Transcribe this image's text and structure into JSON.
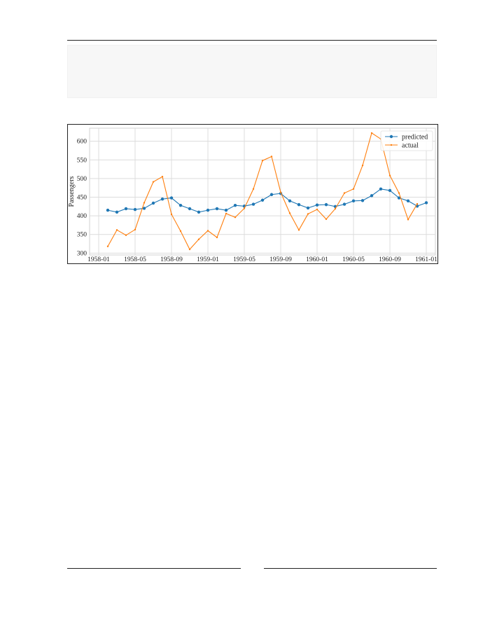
{
  "page": {
    "footer_number": ""
  },
  "chart_data": {
    "type": "line",
    "title": "",
    "xlabel": "",
    "ylabel": "Passengers",
    "ylim": [
      295,
      635
    ],
    "yticks": [
      300,
      350,
      400,
      450,
      500,
      550,
      600
    ],
    "xticks": [
      "1958-01",
      "1958-05",
      "1958-09",
      "1959-01",
      "1959-05",
      "1959-09",
      "1960-01",
      "1960-05",
      "1960-09",
      "1961-01"
    ],
    "grid": true,
    "legend_position": "top-right",
    "x": [
      "1958-02",
      "1958-03",
      "1958-04",
      "1958-05",
      "1958-06",
      "1958-07",
      "1958-08",
      "1958-09",
      "1958-10",
      "1958-11",
      "1958-12",
      "1959-01",
      "1959-02",
      "1959-03",
      "1959-04",
      "1959-05",
      "1959-06",
      "1959-07",
      "1959-08",
      "1959-09",
      "1959-10",
      "1959-11",
      "1959-12",
      "1960-01",
      "1960-02",
      "1960-03",
      "1960-04",
      "1960-05",
      "1960-06",
      "1960-07",
      "1960-08",
      "1960-09",
      "1960-10",
      "1960-11",
      "1960-12",
      "1961-01"
    ],
    "series": [
      {
        "name": "predicted",
        "color": "#1f77b4",
        "marker": "circle",
        "values": [
          415,
          410,
          419,
          417,
          420,
          434,
          445,
          448,
          428,
          419,
          410,
          415,
          419,
          415,
          428,
          426,
          431,
          442,
          457,
          460,
          440,
          430,
          421,
          429,
          430,
          425,
          431,
          440,
          441,
          454,
          472,
          468,
          448,
          440,
          426,
          435
        ]
      },
      {
        "name": "actual",
        "color": "#ff7f0e",
        "marker": "dot",
        "values": [
          318,
          362,
          348,
          363,
          435,
          491,
          505,
          404,
          359,
          310,
          337,
          360,
          342,
          406,
          396,
          420,
          472,
          548,
          559,
          463,
          407,
          362,
          405,
          417,
          391,
          419,
          461,
          472,
          535,
          622,
          606,
          508,
          461,
          390,
          432,
          null
        ]
      }
    ]
  }
}
